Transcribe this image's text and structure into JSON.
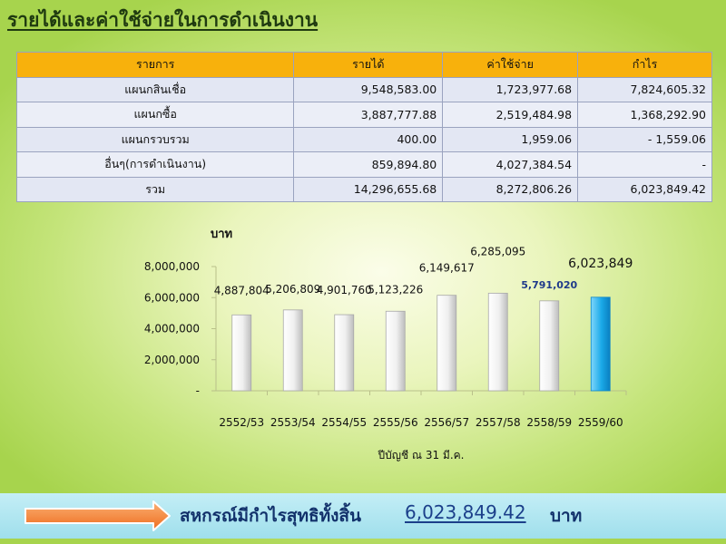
{
  "title": "รายได้และค่าใช้จ่ายในการดำเนินงาน",
  "table": {
    "headers": [
      "รายการ",
      "รายได้",
      "ค่าใช้จ่าย",
      "กำไร"
    ],
    "rows": [
      [
        "แผนกสินเชื่อ",
        "9,548,583.00",
        "1,723,977.68",
        "7,824,605.32"
      ],
      [
        "แผนกซื้อ",
        "3,887,777.88",
        "2,519,484.98",
        "1,368,292.90"
      ],
      [
        "แผนกรวบรวม",
        "400.00",
        "1,959.06",
        "-      1,559.06"
      ],
      [
        "อื่นๆ(การดำเนินงาน)",
        "859,894.80",
        "4,027,384.54",
        "-"
      ],
      [
        "รวม",
        "14,296,655.68",
        "8,272,806.26",
        "6,023,849.42"
      ]
    ]
  },
  "chart_data": {
    "type": "bar",
    "ylabel": "บาท",
    "xlabel": "ปีบัญชี ณ 31 มี.ค.",
    "categories": [
      "2552/53",
      "2553/54",
      "2554/55",
      "2555/56",
      "2556/57",
      "2557/58",
      "2558/59",
      "2559/60"
    ],
    "values": [
      4887804,
      5206809,
      4901760,
      5123226,
      6149617,
      6285095,
      5791020,
      6023849
    ],
    "value_labels": [
      "4,887,804",
      "5,206,809",
      "4,901,760",
      "5,123,226",
      "6,149,617",
      "6,285,095",
      "5,791,020",
      "6,023,849"
    ],
    "ylim": [
      0,
      8000000
    ],
    "yticks": [
      0,
      2000000,
      4000000,
      6000000,
      8000000
    ],
    "ytick_labels": [
      "-",
      "2,000,000",
      "4,000,000",
      "6,000,000",
      "8,000,000"
    ],
    "grid": false,
    "colors": {
      "bar": "#f0f0f0",
      "bar_highlight": "#1aa9e8",
      "axis": "#b9c08a"
    }
  },
  "footer": {
    "text": "สหกรณ์มีกำไรสุทธิทั้งสิ้น",
    "amount": "6,023,849.42 ",
    "unit": "บาท"
  }
}
